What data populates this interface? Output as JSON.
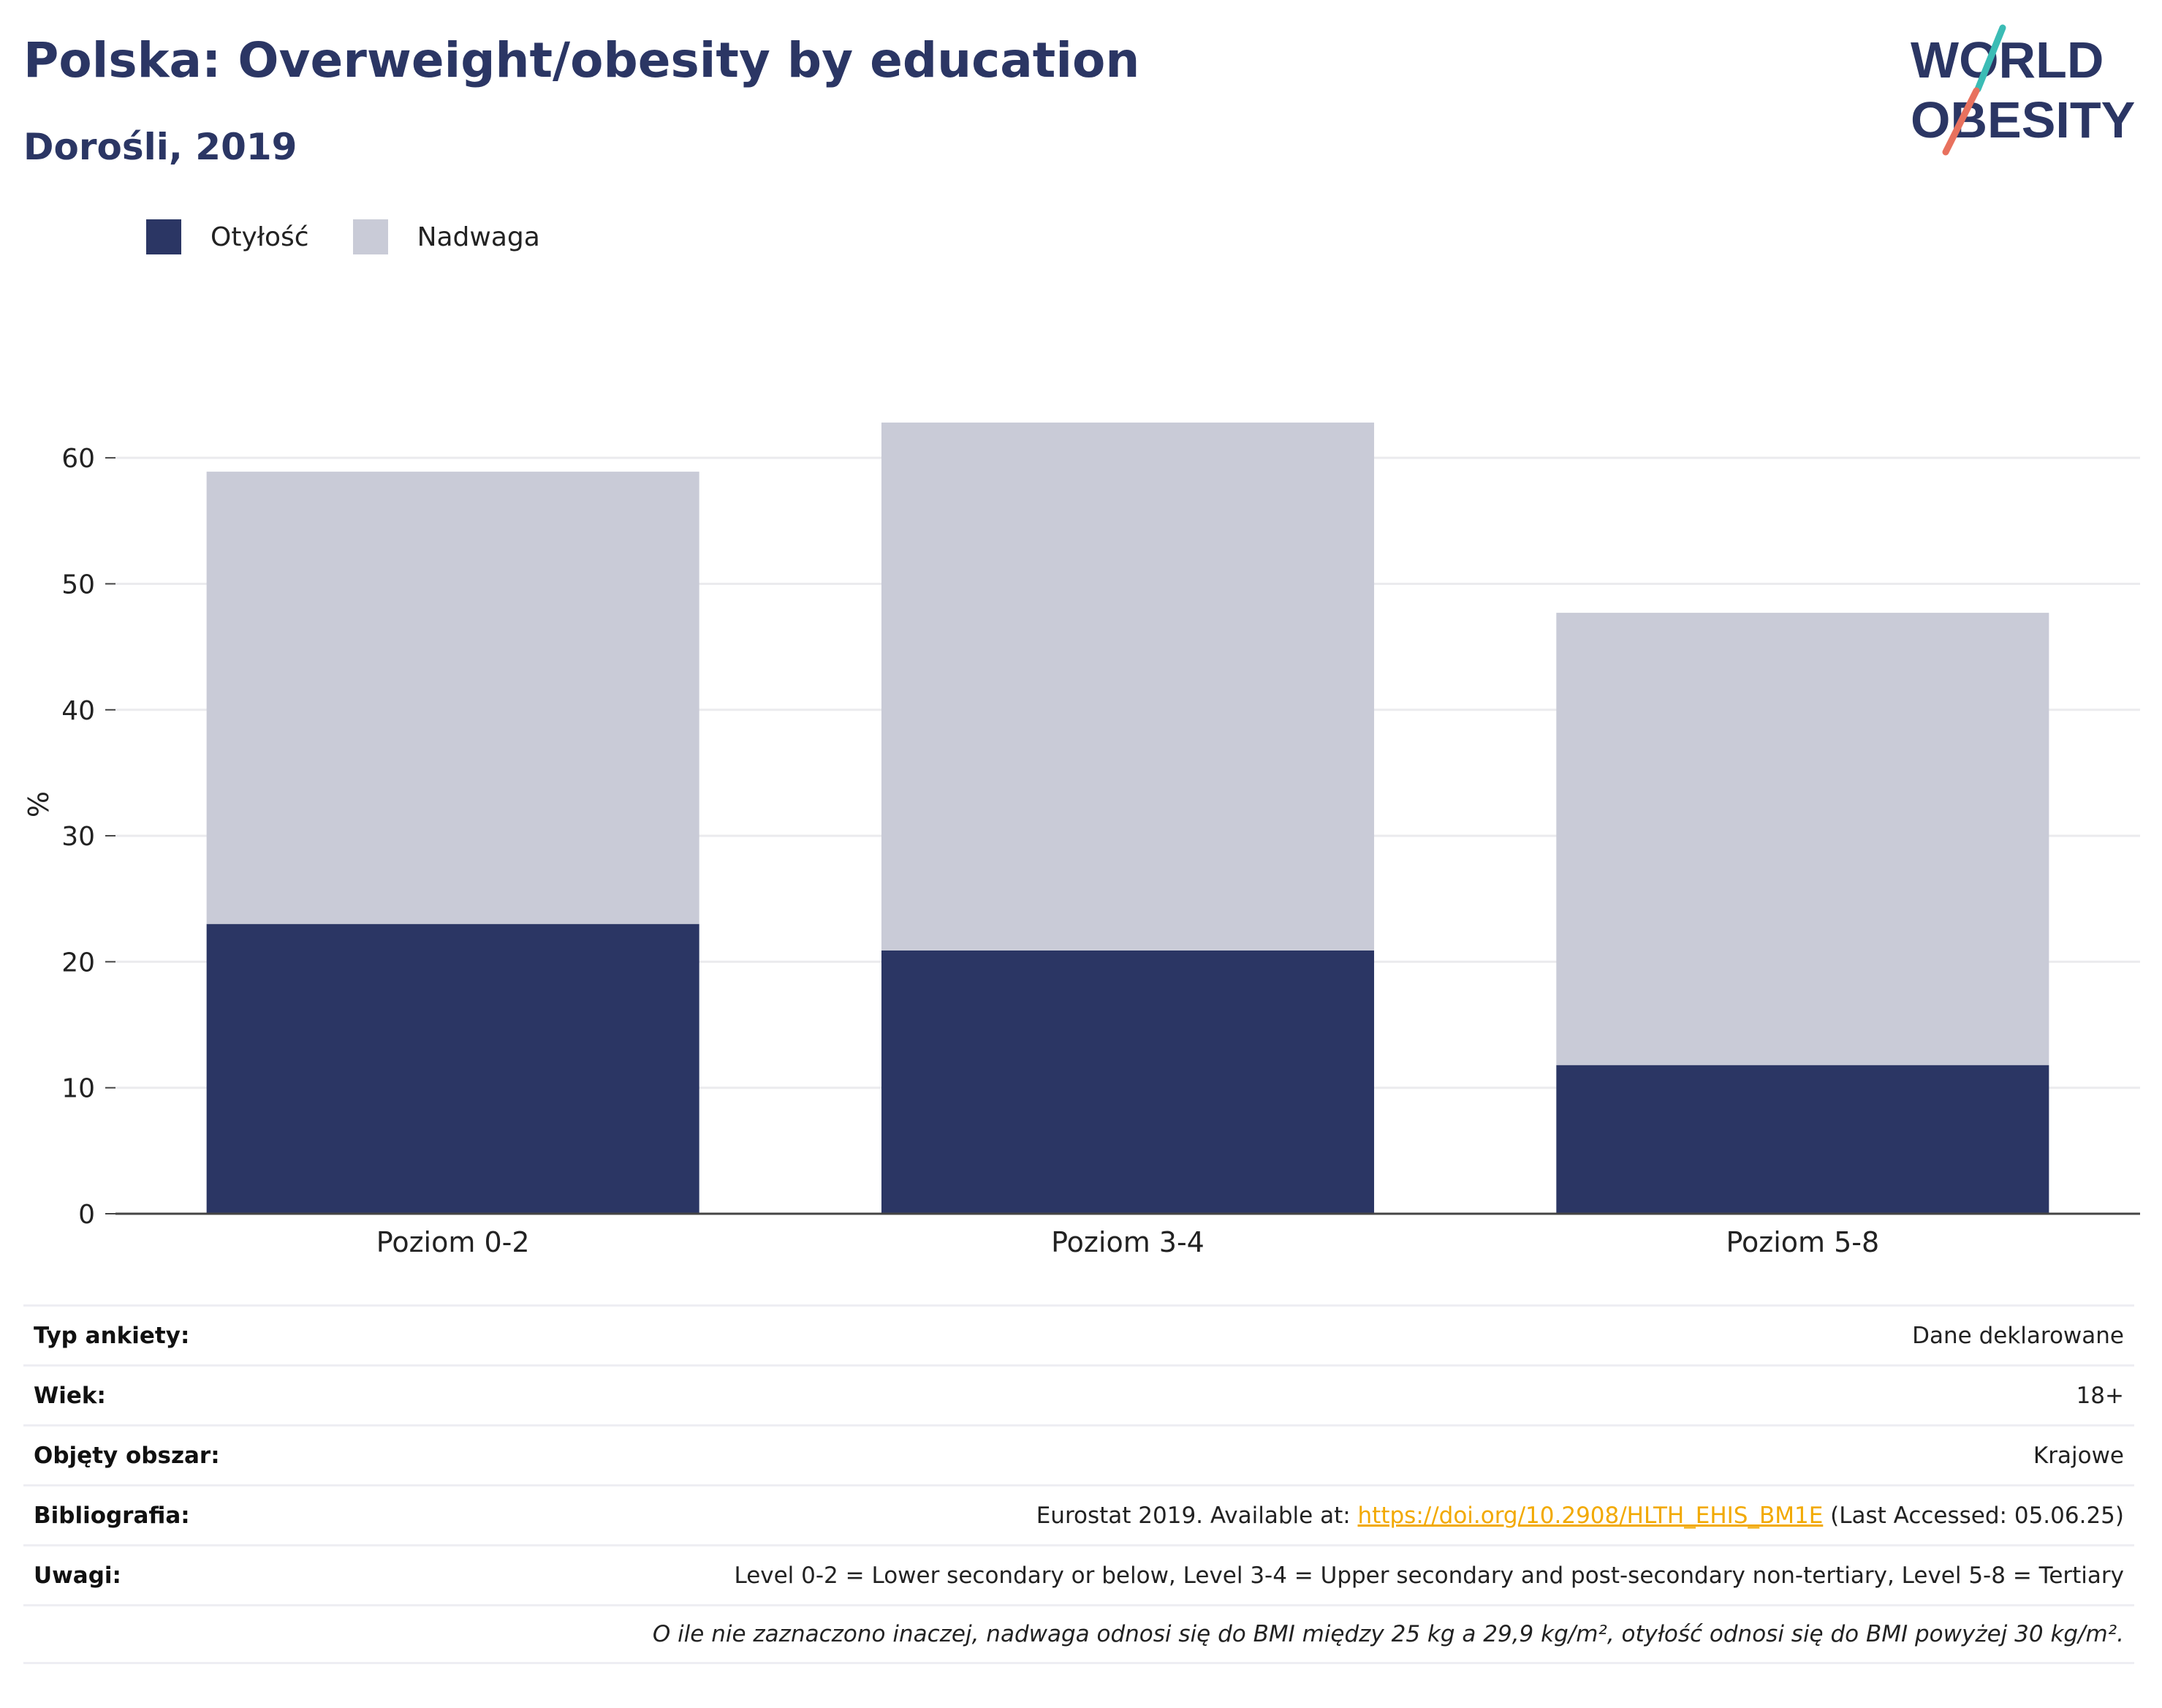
{
  "header": {
    "title": "Polska: Overweight/obesity by education",
    "subtitle": "Dorośli, 2019"
  },
  "logo": {
    "line1": "WORLD",
    "line2": "OBESITY"
  },
  "colors": {
    "obesity": "#2b3664",
    "overweight": "#c9cbd7",
    "title": "#2b3664",
    "link": "#f2a900",
    "logo_teal": "#3bbcb5",
    "logo_coral": "#e8715e"
  },
  "chart_data": {
    "type": "bar",
    "stacked": true,
    "categories": [
      "Poziom 0-2",
      "Poziom 3-4",
      "Poziom 5-8"
    ],
    "series": [
      {
        "name": "Otyłość",
        "values": [
          23.0,
          20.9,
          11.8
        ]
      },
      {
        "name": "Nadwaga",
        "values": [
          35.9,
          41.9,
          35.9
        ]
      }
    ],
    "ylabel": "%",
    "ylim": [
      0,
      65
    ],
    "yticks": [
      0,
      10,
      20,
      30,
      40,
      50,
      60
    ],
    "grid": true,
    "legend_position": "top-left"
  },
  "meta": [
    {
      "label": "Typ ankiety:",
      "value": "Dane deklarowane"
    },
    {
      "label": "Wiek:",
      "value": "18+"
    },
    {
      "label": "Objęty obszar:",
      "value": "Krajowe"
    },
    {
      "label": "Bibliografia:",
      "value_prefix": "Eurostat 2019. Available at: ",
      "link": "https://doi.org/10.2908/HLTH_EHIS_BM1E",
      "value_suffix": " (Last Accessed: 05.06.25)"
    },
    {
      "label": "Uwagi:",
      "value": "Level 0-2 = Lower secondary or below, Level 3-4 = Upper secondary and post-secondary non-tertiary, Level 5-8 = Tertiary"
    }
  ],
  "footnote": "O ile nie zaznaczono inaczej, nadwaga odnosi się do BMI między 25 kg a 29,9 kg/m², otyłość odnosi się do BMI powyżej 30 kg/m²."
}
